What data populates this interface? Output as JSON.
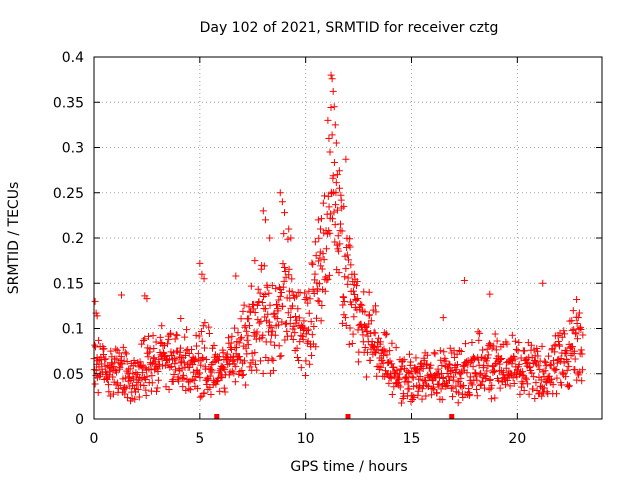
{
  "chart_data": {
    "type": "scatter",
    "title": "Day 102 of 2021, SRMTID for receiver cztg",
    "xlabel": "GPS time / hours",
    "ylabel": "SRMTID / TECUs",
    "xlim": [
      0,
      24
    ],
    "ylim": [
      0,
      0.4
    ],
    "xticks": [
      0,
      5,
      10,
      15,
      20
    ],
    "yticks": [
      0,
      0.05,
      0.1,
      0.15,
      0.2,
      0.25,
      0.3,
      0.35,
      0.4
    ],
    "xtick_labels": [
      "0",
      "5",
      "10",
      "15",
      "20"
    ],
    "ytick_labels": [
      "0",
      "0.05",
      "0.1",
      "0.15",
      "0.2",
      "0.25",
      "0.3",
      "0.35",
      "0.4"
    ],
    "grid": true,
    "marker": "+",
    "color": "#ff0000",
    "axis_markers_x": [
      5.8,
      12.0,
      16.9
    ],
    "envelope": [
      {
        "x": 0.0,
        "base": 0.06,
        "spread": 0.04
      },
      {
        "x": 1.0,
        "base": 0.058,
        "spread": 0.035
      },
      {
        "x": 1.8,
        "base": 0.045,
        "spread": 0.035
      },
      {
        "x": 2.5,
        "base": 0.06,
        "spread": 0.04
      },
      {
        "x": 3.5,
        "base": 0.065,
        "spread": 0.035
      },
      {
        "x": 4.5,
        "base": 0.06,
        "spread": 0.04
      },
      {
        "x": 5.2,
        "base": 0.065,
        "spread": 0.05
      },
      {
        "x": 6.0,
        "base": 0.05,
        "spread": 0.03
      },
      {
        "x": 7.0,
        "base": 0.08,
        "spread": 0.05
      },
      {
        "x": 8.0,
        "base": 0.11,
        "spread": 0.07
      },
      {
        "x": 8.5,
        "base": 0.1,
        "spread": 0.06
      },
      {
        "x": 9.0,
        "base": 0.14,
        "spread": 0.08
      },
      {
        "x": 9.5,
        "base": 0.11,
        "spread": 0.06
      },
      {
        "x": 10.0,
        "base": 0.1,
        "spread": 0.06
      },
      {
        "x": 10.5,
        "base": 0.15,
        "spread": 0.08
      },
      {
        "x": 11.0,
        "base": 0.21,
        "spread": 0.11
      },
      {
        "x": 11.3,
        "base": 0.26,
        "spread": 0.12
      },
      {
        "x": 11.8,
        "base": 0.16,
        "spread": 0.09
      },
      {
        "x": 12.5,
        "base": 0.11,
        "spread": 0.06
      },
      {
        "x": 13.5,
        "base": 0.07,
        "spread": 0.04
      },
      {
        "x": 14.5,
        "base": 0.045,
        "spread": 0.03
      },
      {
        "x": 15.5,
        "base": 0.045,
        "spread": 0.03
      },
      {
        "x": 17.0,
        "base": 0.05,
        "spread": 0.035
      },
      {
        "x": 18.0,
        "base": 0.06,
        "spread": 0.045
      },
      {
        "x": 19.0,
        "base": 0.06,
        "spread": 0.04
      },
      {
        "x": 20.0,
        "base": 0.06,
        "spread": 0.04
      },
      {
        "x": 21.0,
        "base": 0.045,
        "spread": 0.035
      },
      {
        "x": 22.0,
        "base": 0.065,
        "spread": 0.04
      },
      {
        "x": 23.0,
        "base": 0.08,
        "spread": 0.05
      }
    ],
    "highlights": [
      {
        "x": 0.05,
        "y": 0.13
      },
      {
        "x": 0.1,
        "y": 0.117
      },
      {
        "x": 0.15,
        "y": 0.114
      },
      {
        "x": 1.3,
        "y": 0.137
      },
      {
        "x": 2.4,
        "y": 0.136
      },
      {
        "x": 2.5,
        "y": 0.133
      },
      {
        "x": 3.2,
        "y": 0.103
      },
      {
        "x": 4.1,
        "y": 0.111
      },
      {
        "x": 5.0,
        "y": 0.172
      },
      {
        "x": 5.1,
        "y": 0.16
      },
      {
        "x": 5.2,
        "y": 0.155
      },
      {
        "x": 6.7,
        "y": 0.158
      },
      {
        "x": 7.6,
        "y": 0.175
      },
      {
        "x": 8.0,
        "y": 0.23
      },
      {
        "x": 8.1,
        "y": 0.22
      },
      {
        "x": 8.3,
        "y": 0.2
      },
      {
        "x": 8.8,
        "y": 0.25
      },
      {
        "x": 8.9,
        "y": 0.24
      },
      {
        "x": 9.0,
        "y": 0.228
      },
      {
        "x": 9.2,
        "y": 0.21
      },
      {
        "x": 9.3,
        "y": 0.2
      },
      {
        "x": 10.6,
        "y": 0.22
      },
      {
        "x": 10.7,
        "y": 0.21
      },
      {
        "x": 11.05,
        "y": 0.33
      },
      {
        "x": 11.1,
        "y": 0.31
      },
      {
        "x": 11.15,
        "y": 0.295
      },
      {
        "x": 11.2,
        "y": 0.38
      },
      {
        "x": 11.25,
        "y": 0.376
      },
      {
        "x": 11.3,
        "y": 0.362
      },
      {
        "x": 11.35,
        "y": 0.345
      },
      {
        "x": 11.4,
        "y": 0.325
      },
      {
        "x": 11.45,
        "y": 0.305
      },
      {
        "x": 11.5,
        "y": 0.27
      },
      {
        "x": 11.6,
        "y": 0.255
      },
      {
        "x": 11.8,
        "y": 0.235
      },
      {
        "x": 11.9,
        "y": 0.287
      },
      {
        "x": 12.1,
        "y": 0.19
      },
      {
        "x": 12.3,
        "y": 0.16
      },
      {
        "x": 13.0,
        "y": 0.14
      },
      {
        "x": 13.3,
        "y": 0.125
      },
      {
        "x": 16.5,
        "y": 0.112
      },
      {
        "x": 17.5,
        "y": 0.153
      },
      {
        "x": 18.7,
        "y": 0.138
      },
      {
        "x": 21.2,
        "y": 0.15
      },
      {
        "x": 22.8,
        "y": 0.132
      }
    ]
  }
}
